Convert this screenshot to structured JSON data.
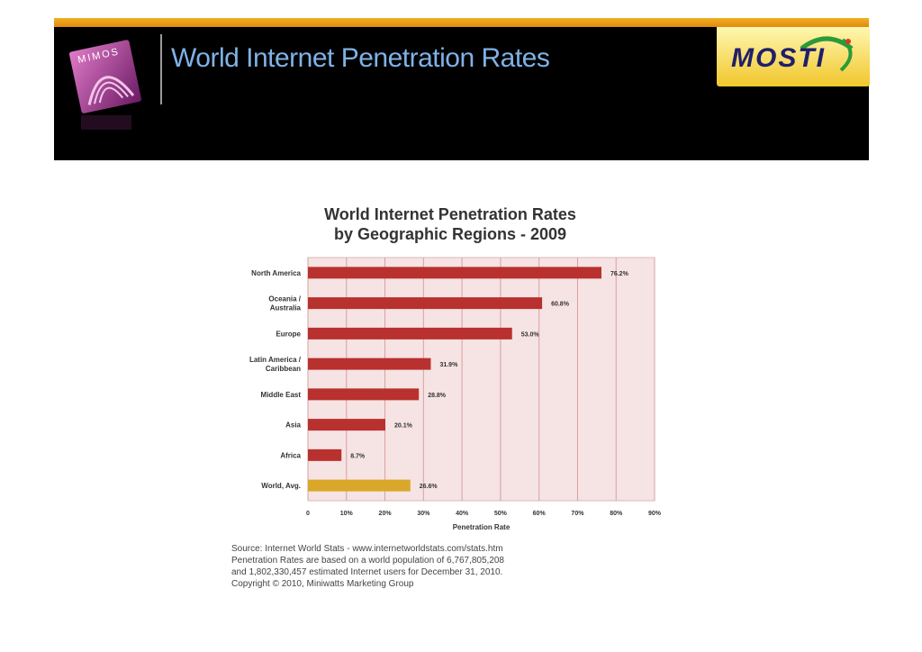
{
  "slide": {
    "title": "World Internet Penetration Rates",
    "logo_left_text": "MIMOS",
    "logo_right_text": "MOSTI"
  },
  "colors": {
    "header_bg": "#000000",
    "title_color": "#7fb2e6",
    "bar_color": "#b8312f",
    "world_bar_color": "#d9a82a",
    "plot_bg": "#f6e3e3"
  },
  "chart_data": {
    "type": "bar",
    "orientation": "horizontal",
    "title": "World Internet Penetration Rates",
    "subtitle": "by Geographic Regions - 2009",
    "categories": [
      "North America",
      "Oceania / Australia",
      "Europe",
      "Latin America / Caribbean",
      "Middle East",
      "Asia",
      "Africa",
      "World, Avg."
    ],
    "category_lines": [
      [
        "North America"
      ],
      [
        "Oceania /",
        "Australia"
      ],
      [
        "Europe"
      ],
      [
        "Latin America /",
        "Caribbean"
      ],
      [
        "Middle East"
      ],
      [
        "Asia"
      ],
      [
        "Africa"
      ],
      [
        "World, Avg."
      ]
    ],
    "values": [
      76.2,
      60.8,
      53.0,
      31.9,
      28.8,
      20.1,
      8.7,
      26.6
    ],
    "value_labels": [
      "76.2%",
      "60.8%",
      "53.0%",
      "31.9%",
      "28.8%",
      "20.1%",
      "8.7%",
      "26.6%"
    ],
    "highlight_index": 7,
    "xlabel": "Penetration Rate",
    "xlim": [
      0,
      90
    ],
    "xticks": [
      0,
      10,
      20,
      30,
      40,
      50,
      60,
      70,
      80,
      90
    ],
    "xtick_labels": [
      "0",
      "10%",
      "20%",
      "30%",
      "40%",
      "50%",
      "60%",
      "70%",
      "80%",
      "90%"
    ],
    "grid": "vertical"
  },
  "source_lines": [
    "Source: Internet World Stats - www.internetworldstats.com/stats.htm",
    "Penetration Rates are based on a world population of 6,767,805,208",
    "and 1,802,330,457 estimated Internet users for December 31, 2010.",
    "Copyright © 2010, Miniwatts Marketing Group"
  ]
}
